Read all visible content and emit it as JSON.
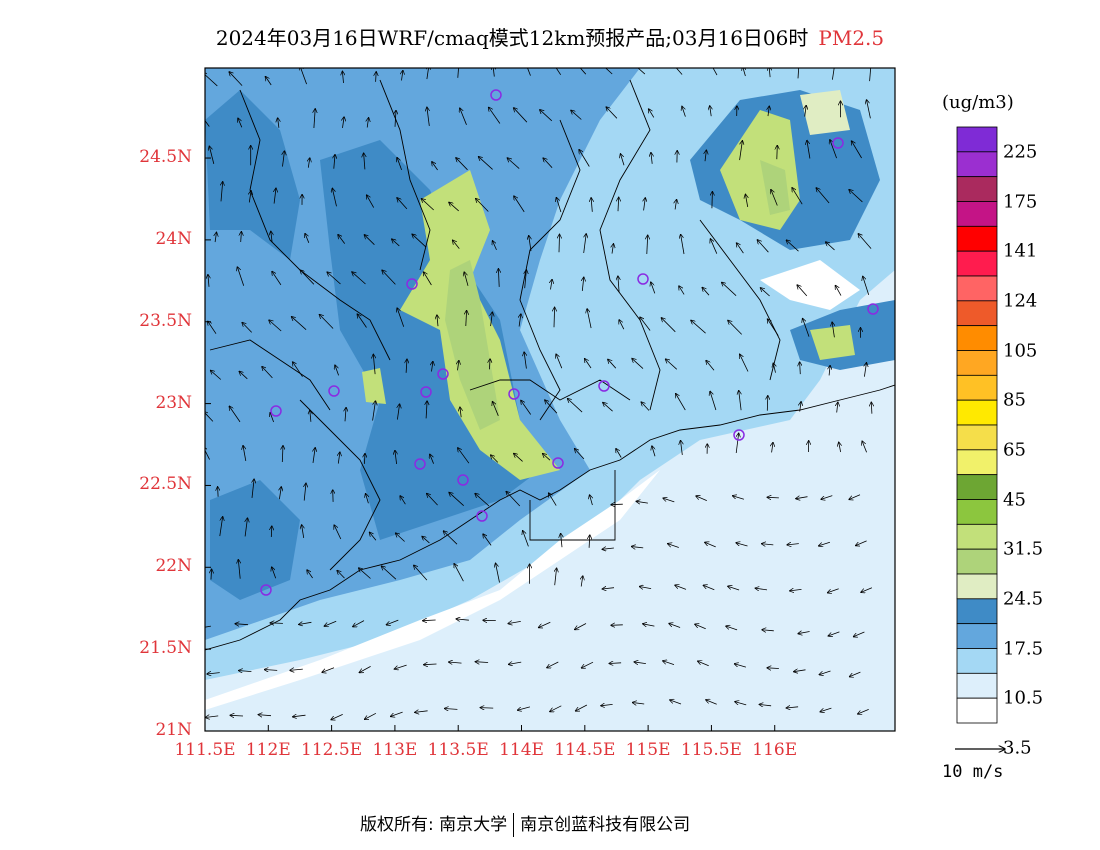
{
  "title": {
    "text": "2024年03月16日WRF/cmaq模式12km预报产品;03月16日06时",
    "pollutant": "PM2.5"
  },
  "axes": {
    "lat_labels": [
      "24.5N",
      "24N",
      "23.5N",
      "23N",
      "22.5N",
      "22N",
      "21.5N",
      "21N"
    ],
    "lon_labels": [
      "111.5E",
      "112E",
      "112.5E",
      "113E",
      "113.5E",
      "114E",
      "114.5E",
      "115E",
      "115.5E",
      "116E"
    ],
    "lat_range": [
      21.0,
      25.05
    ],
    "lon_range": [
      111.5,
      116.95
    ],
    "label_color": "#e0353a"
  },
  "legend": {
    "unit": "(ug/m3)",
    "labels": [
      "225",
      "175",
      "141",
      "124",
      "105",
      "85",
      "65",
      "45",
      "31.5",
      "24.5",
      "17.5",
      "10.5",
      "3.5"
    ],
    "colors": [
      "#7f2bd6",
      "#9b2fd0",
      "#aa2a5e",
      "#c41486",
      "#ff0000",
      "#ff1c4e",
      "#ff6464",
      "#ee5a2a",
      "#ff8c00",
      "#ffa722",
      "#ffc125",
      "#ffe900",
      "#f5de4a",
      "#f1f16a",
      "#6da633",
      "#8cc63e",
      "#c2e07a",
      "#aed37a",
      "#e0edc3",
      "#3f8bc6",
      "#63a7dd",
      "#a4d8f4",
      "#ddeffb",
      "#ffffff"
    ]
  },
  "wind": {
    "reference_label": "10 m/s"
  },
  "stations_color": "#8a2be2",
  "footer": {
    "left": "版权所有: 南京大学",
    "right": "南京创蓝科技有限公司"
  }
}
